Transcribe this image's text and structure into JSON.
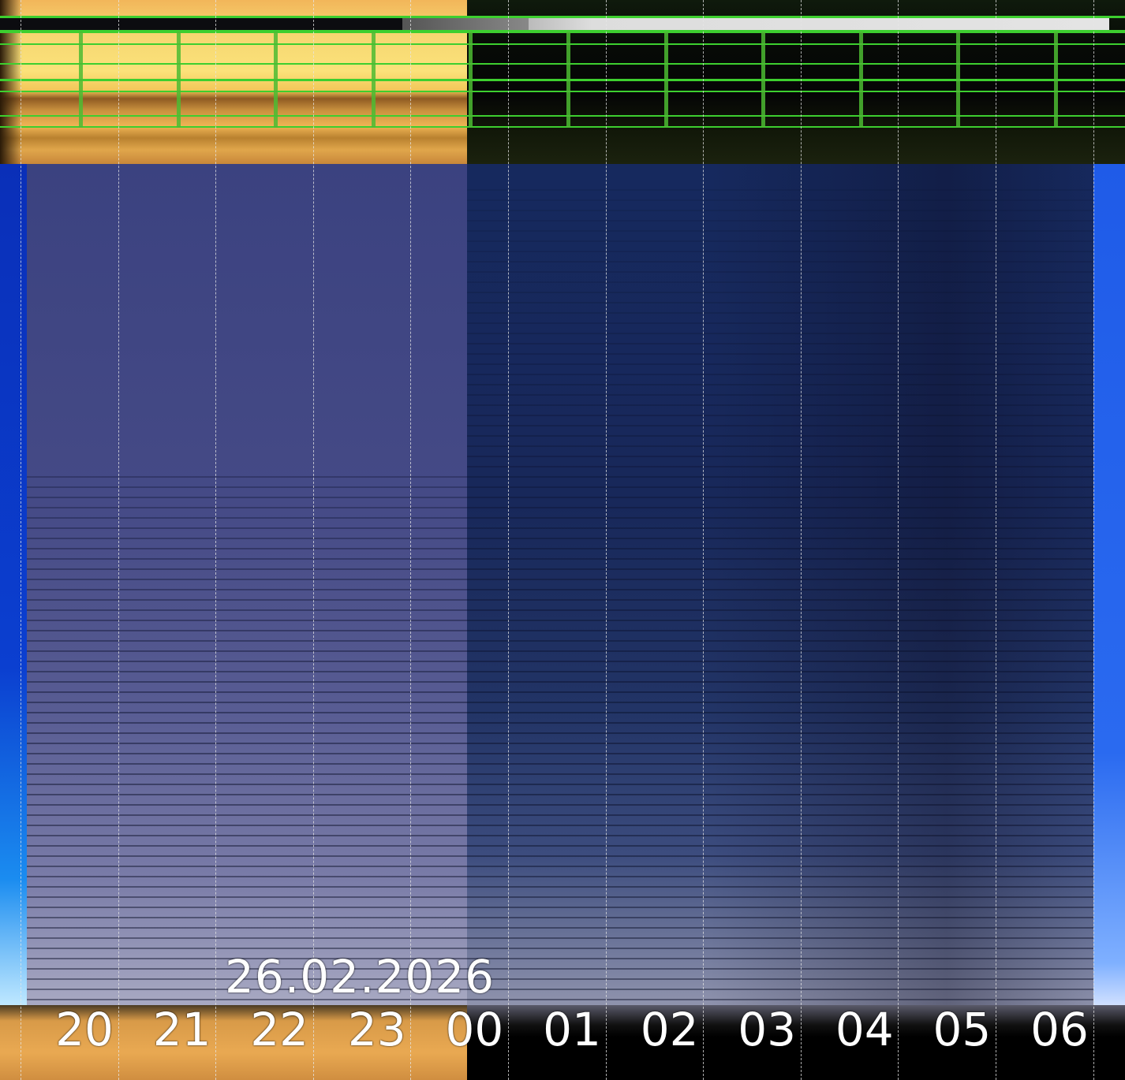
{
  "keogram": {
    "date": "26.02.2026",
    "hours": [
      "20",
      "21",
      "22",
      "23",
      "00",
      "01",
      "02",
      "03",
      "04",
      "05",
      "06"
    ]
  },
  "colors": {
    "grid_green": "#3dcf2f",
    "day_band": "#f6d570",
    "night_sky": "#16295e",
    "twilight_sky": "#454a86"
  }
}
